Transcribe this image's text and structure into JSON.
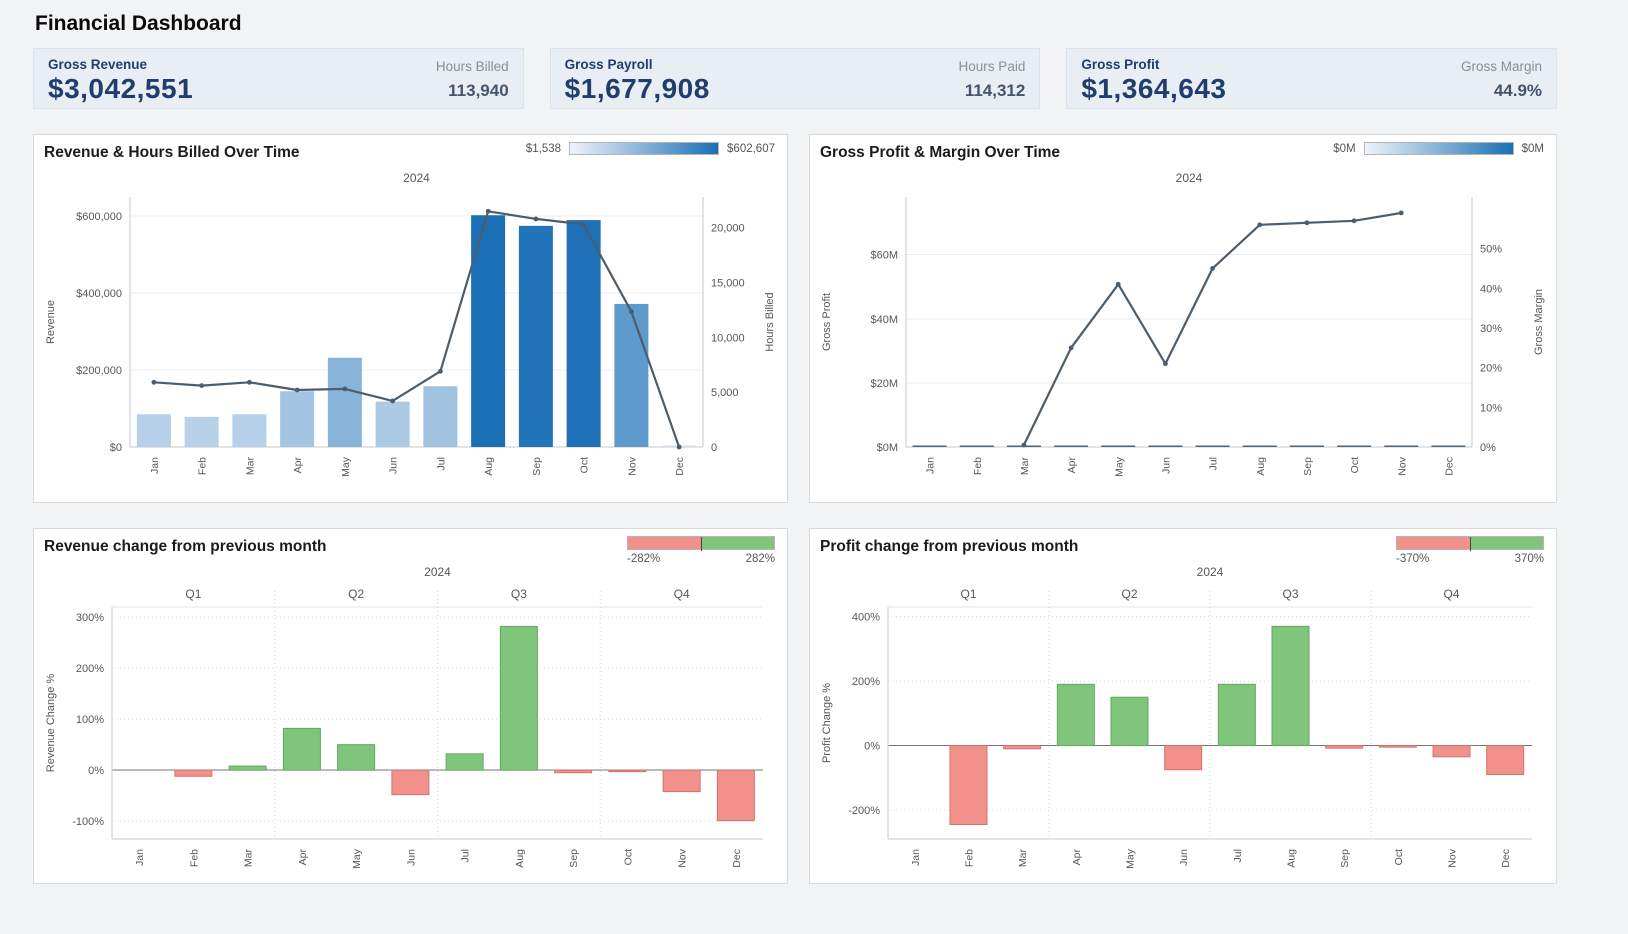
{
  "page": {
    "title": "Financial Dashboard"
  },
  "kpis": [
    {
      "label": "Gross Revenue",
      "value": "$3,042,551",
      "side_label": "Hours Billed",
      "side_value": "113,940"
    },
    {
      "label": "Gross Payroll",
      "value": "$1,677,908",
      "side_label": "Hours Paid",
      "side_value": "114,312"
    },
    {
      "label": "Gross Profit",
      "value": "$1,364,643",
      "side_label": "Gross Margin",
      "side_value": "44.9%"
    }
  ],
  "colors": {
    "kpi_navy": "#1f3d6d",
    "bar_low": "#cfe0f0",
    "bar_high": "#1a6fb5",
    "line_slate": "#4d5d6c",
    "positive_green": "#7fc57b",
    "negative_red": "#f2918c"
  },
  "chart_data": [
    {
      "type": "combo_bar_line",
      "title": "Revenue & Hours Billed Over Time",
      "year_label": "2024",
      "legend": {
        "kind": "gradient",
        "min_label": "$1,538",
        "max_label": "$602,607",
        "low_color": "#eef4fa",
        "high_color": "#1a6fb5"
      },
      "categories": [
        "Jan",
        "Feb",
        "Mar",
        "Apr",
        "May",
        "Jun",
        "Jul",
        "Aug",
        "Sep",
        "Oct",
        "Nov",
        "Dec"
      ],
      "series": [
        {
          "name": "Revenue",
          "type": "bar",
          "axis": "left",
          "values": [
            85000,
            78406,
            85000,
            145000,
            232000,
            118000,
            158000,
            602607,
            575000,
            590000,
            372000,
            1538
          ],
          "color_low": "#cfe0f0",
          "color_high": "#1a6fb5"
        },
        {
          "name": "Hours Billed",
          "type": "line",
          "axis": "right",
          "values": [
            5900,
            5600,
            5900,
            5200,
            5300,
            4200,
            6900,
            21500,
            20800,
            20300,
            12340,
            0
          ],
          "color": "#4d5d6c"
        }
      ],
      "left_axis": {
        "title": "Revenue",
        "ticks": [
          0,
          200000,
          400000,
          600000
        ],
        "tick_labels": [
          "$0",
          "$200,000",
          "$400,000",
          "$600,000"
        ],
        "max": 650000
      },
      "right_axis": {
        "title": "Hours Billed",
        "ticks": [
          0,
          5000,
          10000,
          15000,
          20000
        ],
        "tick_labels": [
          "0",
          "5,000",
          "10,000",
          "15,000",
          "20,000"
        ],
        "max": 22800
      }
    },
    {
      "type": "combo_bar_line",
      "title": "Gross Profit & Margin Over Time",
      "year_label": "2024",
      "legend": {
        "kind": "gradient",
        "min_label": "$0M",
        "max_label": "$0M",
        "low_color": "#eef4fa",
        "high_color": "#1a6fb5"
      },
      "categories": [
        "Jan",
        "Feb",
        "Mar",
        "Apr",
        "May",
        "Jun",
        "Jul",
        "Aug",
        "Sep",
        "Oct",
        "Nov",
        "Dec"
      ],
      "series": [
        {
          "name": "Gross Profit",
          "type": "bar",
          "axis": "left",
          "values": [
            0.02,
            0.03,
            0.02,
            0.06,
            0.1,
            0.04,
            0.08,
            0.29,
            0.28,
            0.28,
            0.22,
            0.01
          ],
          "color": "#4e6577"
        },
        {
          "name": "Gross Margin",
          "type": "line",
          "axis": "right",
          "values": [
            null,
            null,
            0.5,
            25,
            41,
            21,
            45,
            56,
            56.5,
            57,
            59,
            null
          ],
          "color": "#4d5d6c"
        }
      ],
      "left_axis": {
        "title": "Gross Profit",
        "ticks": [
          0,
          20,
          40,
          60
        ],
        "tick_labels": [
          "$0M",
          "$20M",
          "$40M",
          "$60M"
        ],
        "max": 78
      },
      "right_axis": {
        "title": "Gross Margin",
        "ticks": [
          0,
          10,
          20,
          30,
          40,
          50
        ],
        "tick_labels": [
          "0%",
          "10%",
          "20%",
          "30%",
          "40%",
          "50%"
        ],
        "max": 63
      }
    },
    {
      "type": "diverging_bar",
      "title": "Revenue change from previous month",
      "year_label": "2024",
      "quarter_labels": [
        "Q1",
        "Q2",
        "Q3",
        "Q4"
      ],
      "legend": {
        "kind": "diverging",
        "min_label": "-282%",
        "max_label": "282%",
        "neg_color": "#f2918c",
        "pos_color": "#7fc57b"
      },
      "categories": [
        "Jan",
        "Feb",
        "Mar",
        "Apr",
        "May",
        "Jun",
        "Jul",
        "Aug",
        "Sep",
        "Oct",
        "Nov",
        "Dec"
      ],
      "values": [
        null,
        -12,
        8,
        82,
        50,
        -48,
        32,
        282,
        -5,
        -2,
        -42,
        -99
      ],
      "y_axis": {
        "title": "Revenue Change %",
        "ticks": [
          -100,
          0,
          100,
          200,
          300
        ],
        "tick_labels": [
          "-100%",
          "0%",
          "100%",
          "200%",
          "300%"
        ],
        "min": -135,
        "max": 320
      }
    },
    {
      "type": "diverging_bar",
      "title": "Profit change from previous month",
      "year_label": "2024",
      "quarter_labels": [
        "Q1",
        "Q2",
        "Q3",
        "Q4"
      ],
      "legend": {
        "kind": "diverging",
        "min_label": "-370%",
        "max_label": "370%",
        "neg_color": "#f2918c",
        "pos_color": "#7fc57b"
      },
      "categories": [
        "Jan",
        "Feb",
        "Mar",
        "Apr",
        "May",
        "Jun",
        "Jul",
        "Aug",
        "Sep",
        "Oct",
        "Nov",
        "Dec"
      ],
      "values": [
        null,
        -245,
        -10,
        190,
        150,
        -75,
        190,
        370,
        -8,
        -5,
        -35,
        -90
      ],
      "y_axis": {
        "title": "Profit Change %",
        "ticks": [
          -200,
          0,
          200,
          400
        ],
        "tick_labels": [
          "-200%",
          "0%",
          "200%",
          "400%"
        ],
        "min": -290,
        "max": 430
      }
    }
  ]
}
